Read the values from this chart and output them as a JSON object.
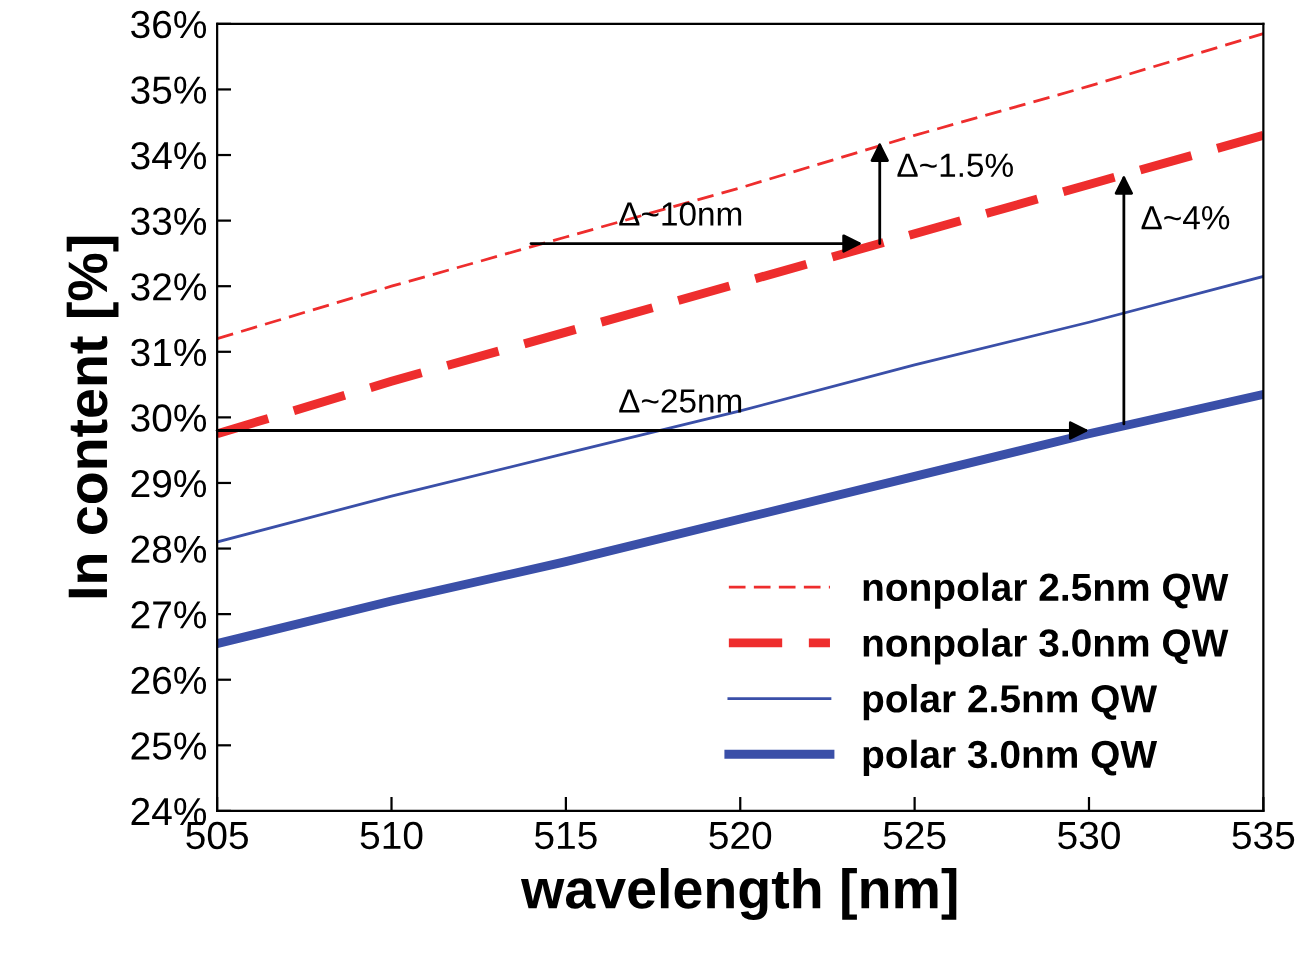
{
  "chart_data": {
    "type": "line",
    "xlabel": "wavelength [nm]",
    "ylabel": "In content [%]",
    "xlim": [
      505,
      535
    ],
    "xticks": [
      505,
      510,
      515,
      520,
      525,
      530,
      535
    ],
    "ylim": [
      24,
      36
    ],
    "yticks": [
      {
        "value": 24,
        "label": "24%"
      },
      {
        "value": 25,
        "label": "25%"
      },
      {
        "value": 26,
        "label": "26%"
      },
      {
        "value": 27,
        "label": "27%"
      },
      {
        "value": 28,
        "label": "28%"
      },
      {
        "value": 29,
        "label": "29%"
      },
      {
        "value": 30,
        "label": "30%"
      },
      {
        "value": 31,
        "label": "31%"
      },
      {
        "value": 32,
        "label": "32%"
      },
      {
        "value": 33,
        "label": "33%"
      },
      {
        "value": 34,
        "label": "34%"
      },
      {
        "value": 35,
        "label": "35%"
      },
      {
        "value": 36,
        "label": "36%"
      }
    ],
    "x": [
      505,
      510,
      515,
      520,
      525,
      530,
      535
    ],
    "series": [
      {
        "name": "nonpolar 2.5nm QW",
        "color": "#ee2d2d",
        "line_style": "dashed",
        "values": [
          31.2,
          32.0,
          32.75,
          33.5,
          34.3,
          35.05,
          35.85
        ]
      },
      {
        "name": "nonpolar 3.0nm QW",
        "color": "#ee2d2d",
        "line_style": "dashed",
        "values": [
          29.75,
          30.55,
          31.3,
          32.05,
          32.8,
          33.55,
          34.3
        ]
      },
      {
        "name": "polar 2.5nm QW",
        "color": "#3a4fa8",
        "line_style": "solid",
        "values": [
          28.1,
          28.8,
          29.45,
          30.1,
          30.8,
          31.45,
          32.15
        ]
      },
      {
        "name": "polar 3.0nm QW",
        "color": "#3a4fa8",
        "line_style": "solid",
        "values": [
          26.55,
          27.2,
          27.8,
          28.45,
          29.1,
          29.75,
          30.35
        ]
      },
      {
        "color": "#000000",
        "x": [
          524,
          524
        ],
        "values": [
          32.65,
          34.2
        ]
      },
      {
        "color": "#000000",
        "x": [
          514,
          523.5
        ],
        "values": [
          32.65,
          32.65
        ]
      },
      {
        "color": "#000000",
        "x": [
          505,
          530
        ],
        "values": [
          29.8,
          29.8
        ]
      },
      {
        "color": "#000000",
        "x": [
          531,
          531
        ],
        "values": [
          29.9,
          33.7
        ]
      }
    ],
    "annotations": [
      {
        "text": "Δ~1.5%",
        "x": 524,
        "y": 33.8
      },
      {
        "text": "Δ~10nm",
        "x": 516.5,
        "y": 32.65
      },
      {
        "text": "Δ~25nm",
        "x": 516.5,
        "y": 29.8
      },
      {
        "text": "Δ~4%",
        "x": 531,
        "y": 33.0
      }
    ],
    "legend": "bottom right",
    "grid": false,
    "marker": "none"
  }
}
